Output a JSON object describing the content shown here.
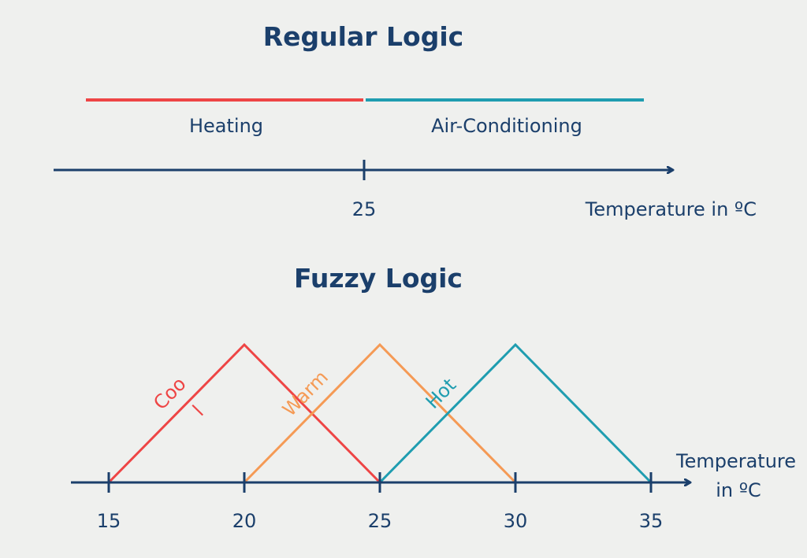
{
  "colors": {
    "background": "#eff0ee",
    "text": "#1b3f6b",
    "axis": "#1b3f6b",
    "heating": "#ee4545",
    "air_conditioning": "#1f9db0",
    "cool": "#ee4545",
    "warm": "#f59a55",
    "hot": "#1f9db0"
  },
  "regular": {
    "title": "Regular Logic",
    "heating_label": "Heating",
    "ac_label": "Air-Conditioning",
    "threshold_label": "25",
    "threshold": 25,
    "axis_label": "Temperature in ºC"
  },
  "fuzzy": {
    "title": "Fuzzy Logic",
    "axis_label_line1": "Temperature",
    "axis_label_line2": "in ºC",
    "ticks": [
      "15",
      "20",
      "25",
      "30",
      "35"
    ],
    "sets": [
      {
        "name": "Coo",
        "extra": "l",
        "points": [
          15,
          20,
          25
        ],
        "color_key": "cool"
      },
      {
        "name": "Warm",
        "extra": "",
        "points": [
          20,
          25,
          30
        ],
        "color_key": "warm"
      },
      {
        "name": "Hot",
        "extra": "",
        "points": [
          25,
          30,
          35
        ],
        "color_key": "hot"
      }
    ]
  }
}
